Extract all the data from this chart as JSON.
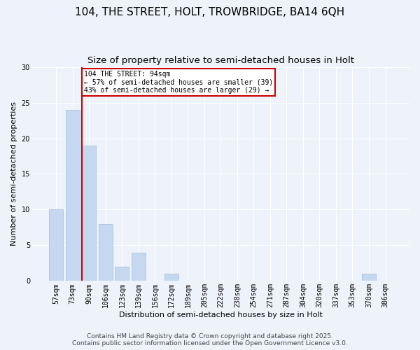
{
  "title_line1": "104, THE STREET, HOLT, TROWBRIDGE, BA14 6QH",
  "title_line2": "Size of property relative to semi-detached houses in Holt",
  "xlabel": "Distribution of semi-detached houses by size in Holt",
  "ylabel": "Number of semi-detached properties",
  "categories": [
    "57sqm",
    "73sqm",
    "90sqm",
    "106sqm",
    "123sqm",
    "139sqm",
    "156sqm",
    "172sqm",
    "189sqm",
    "205sqm",
    "222sqm",
    "238sqm",
    "254sqm",
    "271sqm",
    "287sqm",
    "304sqm",
    "320sqm",
    "337sqm",
    "353sqm",
    "370sqm",
    "386sqm"
  ],
  "values": [
    10,
    24,
    19,
    8,
    2,
    4,
    0,
    1,
    0,
    0,
    0,
    0,
    0,
    0,
    0,
    0,
    0,
    0,
    0,
    1,
    0
  ],
  "bar_color": "#c5d8f0",
  "bar_edgecolor": "#a8c4e0",
  "red_line_index": 2,
  "annotation_title": "104 THE STREET: 94sqm",
  "annotation_line2": "← 57% of semi-detached houses are smaller (39)",
  "annotation_line3": "43% of semi-detached houses are larger (29) →",
  "annotation_box_edgecolor": "#cc0000",
  "red_line_color": "#cc0000",
  "ylim": [
    0,
    30
  ],
  "yticks": [
    0,
    5,
    10,
    15,
    20,
    25,
    30
  ],
  "background_color": "#eef2fa",
  "plot_background": "#eef2fa",
  "grid_color": "#ffffff",
  "footer_line1": "Contains HM Land Registry data © Crown copyright and database right 2025.",
  "footer_line2": "Contains public sector information licensed under the Open Government Licence v3.0.",
  "title_fontsize": 11,
  "subtitle_fontsize": 9.5,
  "ylabel_fontsize": 8,
  "xlabel_fontsize": 8,
  "tick_fontsize": 7,
  "annotation_fontsize": 7,
  "footer_fontsize": 6.5
}
